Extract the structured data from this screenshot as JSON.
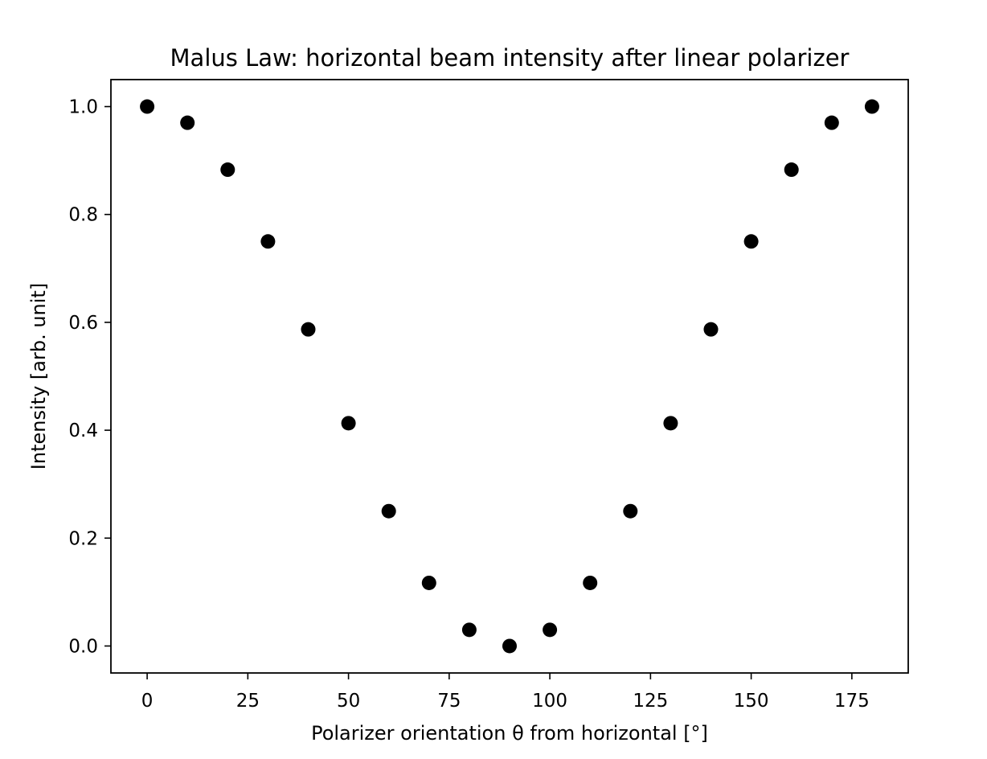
{
  "chart_data": {
    "type": "scatter",
    "title": "Malus Law: horizontal beam intensity after linear polarizer",
    "xlabel": "Polarizer orientation θ from horizontal [°]",
    "ylabel": "Intensity [arb. unit]",
    "xlim": [
      -9,
      189
    ],
    "ylim": [
      -0.05,
      1.05
    ],
    "xticks": [
      0,
      25,
      50,
      75,
      100,
      125,
      150,
      175
    ],
    "yticks": [
      0.0,
      0.2,
      0.4,
      0.6,
      0.8,
      1.0
    ],
    "xtick_labels": [
      "0",
      "25",
      "50",
      "75",
      "100",
      "125",
      "150",
      "175"
    ],
    "ytick_labels": [
      "0.0",
      "0.2",
      "0.4",
      "0.6",
      "0.8",
      "1.0"
    ],
    "grid": false,
    "marker_color": "#000000",
    "series": [
      {
        "x": [
          0,
          10,
          20,
          30,
          40,
          50,
          60,
          70,
          80,
          90,
          100,
          110,
          120,
          130,
          140,
          150,
          160,
          170,
          180
        ],
        "y": [
          1.0,
          0.97,
          0.883,
          0.75,
          0.587,
          0.413,
          0.25,
          0.117,
          0.03,
          0.0,
          0.03,
          0.117,
          0.25,
          0.413,
          0.587,
          0.75,
          0.883,
          0.97,
          1.0
        ]
      }
    ]
  }
}
